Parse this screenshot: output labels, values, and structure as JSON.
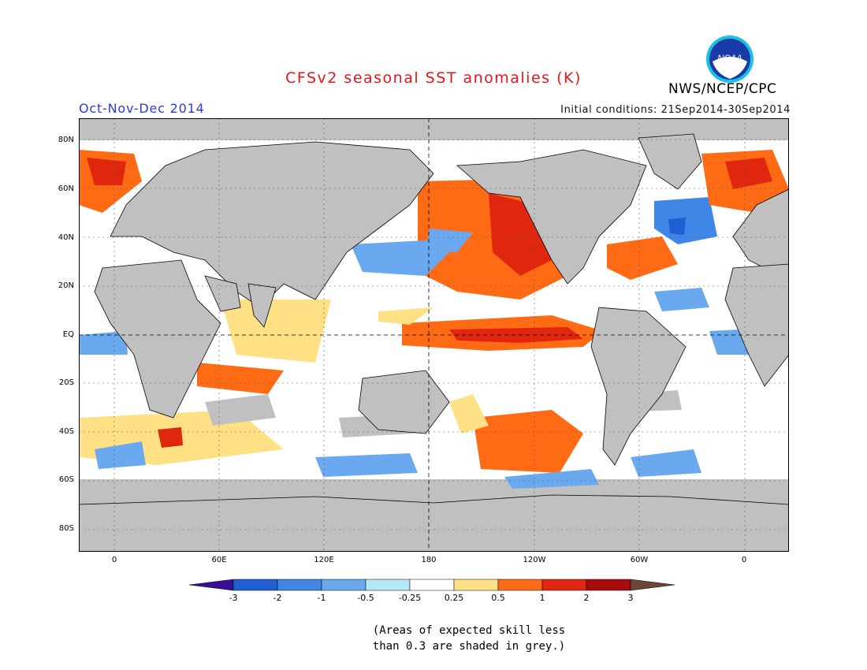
{
  "header": {
    "title": "CFSv2 seasonal SST anomalies (K)",
    "season": "Oct-Nov-Dec 2014",
    "initial_conditions": "Initial conditions: 21Sep2014-30Sep2014",
    "agency": "NWS/NCEP/CPC",
    "logo_text": "NOAA"
  },
  "colors": {
    "title": "#e8141a",
    "season": "#2b3bd6",
    "land": "#c0c0c0",
    "ocean_neutral": "#ffffff"
  },
  "map": {
    "lat_labels": [
      "80N",
      "60N",
      "40N",
      "20N",
      "EQ",
      "20S",
      "40S",
      "60S",
      "80S"
    ],
    "lon_labels": [
      "0",
      "60E",
      "120E",
      "180",
      "120W",
      "60W",
      "0"
    ]
  },
  "colorbar": {
    "labels": [
      "-3",
      "-2",
      "-1",
      "-0.5",
      "-0.25",
      "0.25",
      "0.5",
      "1",
      "2",
      "3"
    ],
    "colors": [
      "#3a0f96",
      "#1f5fd3",
      "#3f86e6",
      "#6aa9ef",
      "#b6e7f5",
      "#ffffff",
      "#ffe084",
      "#ff6a14",
      "#e0260f",
      "#a80b0b",
      "#6b4636"
    ]
  },
  "note": {
    "line1": "(Areas of expected skill less",
    "line2": "than 0.3 are shaded in grey.)"
  }
}
